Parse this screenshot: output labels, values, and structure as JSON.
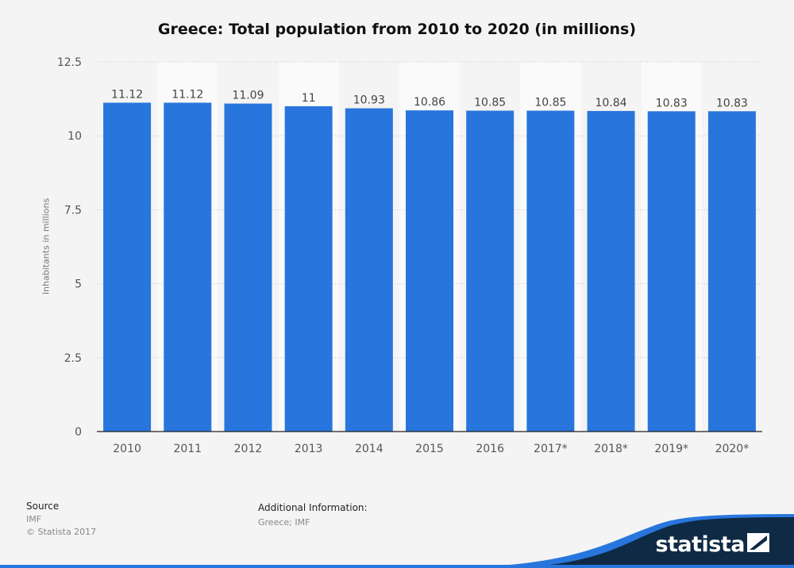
{
  "chart_data": {
    "type": "bar",
    "title": "Greece: Total population from 2010 to 2020 (in millions)",
    "xlabel": "",
    "ylabel": "Inhabitants in millions",
    "categories": [
      "2010",
      "2011",
      "2012",
      "2013",
      "2014",
      "2015",
      "2016",
      "2017*",
      "2018*",
      "2019*",
      "2020*"
    ],
    "values": [
      11.12,
      11.12,
      11.09,
      11,
      10.93,
      10.86,
      10.85,
      10.85,
      10.84,
      10.83,
      10.83
    ],
    "value_labels": [
      "11.12",
      "11.12",
      "11.09",
      "11",
      "10.93",
      "10.86",
      "10.85",
      "10.85",
      "10.84",
      "10.83",
      "10.83"
    ],
    "ylim": [
      0,
      12.5
    ],
    "yticks": [
      "0",
      "2.5",
      "5",
      "7.5",
      "10",
      "12.5"
    ],
    "grid": true,
    "bar_color": "#2876dd"
  },
  "footer": {
    "source_label": "Source",
    "source_value": "IMF",
    "copyright": "© Statista 2017",
    "additional_label": "Additional Information:",
    "additional_value": "Greece; IMF",
    "brand": "statista"
  }
}
